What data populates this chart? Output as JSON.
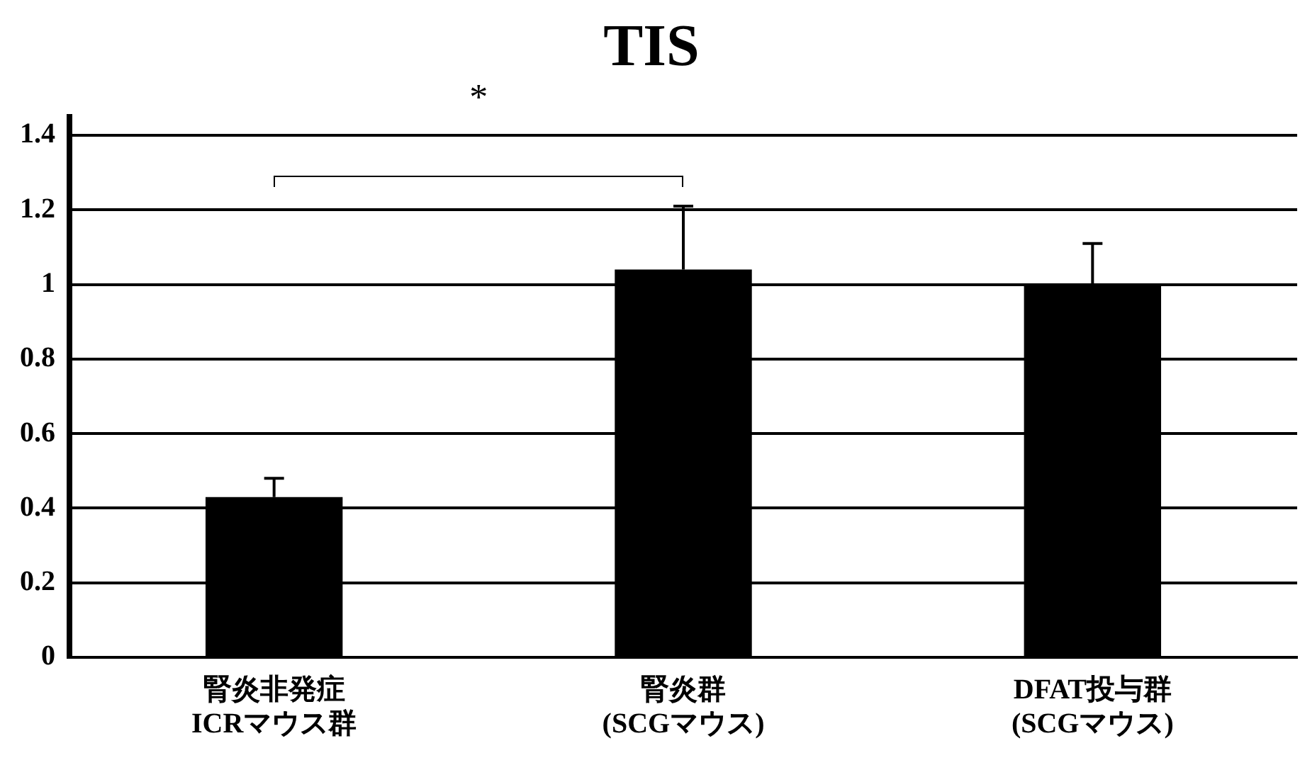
{
  "chart_data": {
    "type": "bar",
    "title": "TIS",
    "categories": [
      "腎炎非発症\nICRマウス群",
      "腎炎群\n(SCGマウス)",
      "DFAT投与群\n(SCGマウス)"
    ],
    "values": [
      0.43,
      1.04,
      1.0
    ],
    "errors": [
      [
        0.43,
        0.48
      ],
      [
        1.04,
        1.21
      ],
      [
        1.0,
        1.11
      ]
    ],
    "color": "#000000",
    "ylim": [
      0,
      1.45
    ],
    "yticks": [
      0,
      0.2,
      0.4,
      0.6,
      0.8,
      1,
      1.2,
      1.4
    ],
    "grid": "y",
    "legend": false,
    "annotations": [
      "*"
    ]
  }
}
